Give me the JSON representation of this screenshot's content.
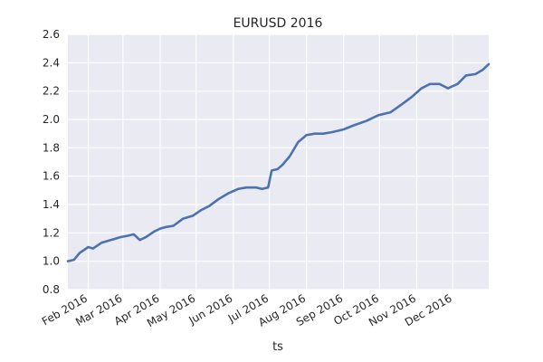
{
  "chart_data": {
    "type": "line",
    "title": "EURUSD 2016",
    "xlabel": "ts",
    "ylabel": "",
    "x_range": [
      "2016-01-15",
      "2016-12-31"
    ],
    "ylim": [
      0.8,
      2.6
    ],
    "yticks": [
      0.8,
      1.0,
      1.2,
      1.4,
      1.6,
      1.8,
      2.0,
      2.2,
      2.4,
      2.6
    ],
    "ytick_labels": [
      "0.8",
      "1.0",
      "1.2",
      "1.4",
      "1.6",
      "1.8",
      "2.0",
      "2.2",
      "2.4",
      "2.6"
    ],
    "xticks": [
      "2016-02-01",
      "2016-03-01",
      "2016-04-01",
      "2016-05-01",
      "2016-06-01",
      "2016-07-01",
      "2016-08-01",
      "2016-09-01",
      "2016-10-01",
      "2016-11-01",
      "2016-12-01"
    ],
    "xtick_labels": [
      "Feb 2016",
      "Mar 2016",
      "Apr 2016",
      "May 2016",
      "Jun 2016",
      "Jul 2016",
      "Aug 2016",
      "Sep 2016",
      "Oct 2016",
      "Nov 2016",
      "Dec 2016"
    ],
    "grid": true,
    "series": [
      {
        "color": "#4c72b0",
        "x": [
          "2016-01-15",
          "2016-01-20",
          "2016-01-25",
          "2016-02-01",
          "2016-02-05",
          "2016-02-12",
          "2016-02-20",
          "2016-02-28",
          "2016-03-05",
          "2016-03-10",
          "2016-03-15",
          "2016-03-20",
          "2016-03-27",
          "2016-04-01",
          "2016-04-05",
          "2016-04-12",
          "2016-04-20",
          "2016-04-28",
          "2016-05-05",
          "2016-05-12",
          "2016-05-20",
          "2016-05-28",
          "2016-06-05",
          "2016-06-12",
          "2016-06-20",
          "2016-06-25",
          "2016-06-30",
          "2016-07-03",
          "2016-07-08",
          "2016-07-12",
          "2016-07-18",
          "2016-07-25",
          "2016-08-01",
          "2016-08-08",
          "2016-08-15",
          "2016-08-22",
          "2016-09-01",
          "2016-09-10",
          "2016-09-20",
          "2016-09-30",
          "2016-10-10",
          "2016-10-20",
          "2016-10-28",
          "2016-11-05",
          "2016-11-12",
          "2016-11-20",
          "2016-11-27",
          "2016-12-05",
          "2016-12-12",
          "2016-12-20",
          "2016-12-26",
          "2016-12-31"
        ],
        "values": [
          1.0,
          1.01,
          1.06,
          1.1,
          1.09,
          1.13,
          1.15,
          1.17,
          1.18,
          1.19,
          1.15,
          1.17,
          1.21,
          1.23,
          1.24,
          1.25,
          1.3,
          1.32,
          1.36,
          1.39,
          1.44,
          1.48,
          1.51,
          1.52,
          1.52,
          1.51,
          1.52,
          1.64,
          1.65,
          1.68,
          1.74,
          1.84,
          1.89,
          1.9,
          1.9,
          1.91,
          1.93,
          1.96,
          1.99,
          2.03,
          2.05,
          2.11,
          2.16,
          2.22,
          2.25,
          2.25,
          2.22,
          2.25,
          2.31,
          2.32,
          2.35,
          2.39
        ]
      }
    ]
  }
}
